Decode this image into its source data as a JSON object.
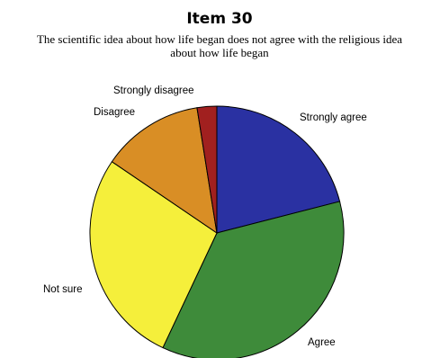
{
  "chart_data": {
    "type": "pie",
    "title": "Item 30",
    "subtitle_lines": [
      "The scientific idea about how life began does not agree with the religious idea",
      "about how life began"
    ],
    "start": "12 o'clock",
    "direction": "clockwise",
    "slices": [
      {
        "label": "Strongly agree",
        "value": 21,
        "color": "#2a31a2"
      },
      {
        "label": "Agree",
        "value": 36,
        "color": "#3e8b3a"
      },
      {
        "label": "Not sure",
        "value": 27.5,
        "color": "#f5ef3b"
      },
      {
        "label": "Disagree",
        "value": 13,
        "color": "#d98e25"
      },
      {
        "label": "Strongly disagree",
        "value": 2.5,
        "color": "#a1201f"
      }
    ]
  }
}
